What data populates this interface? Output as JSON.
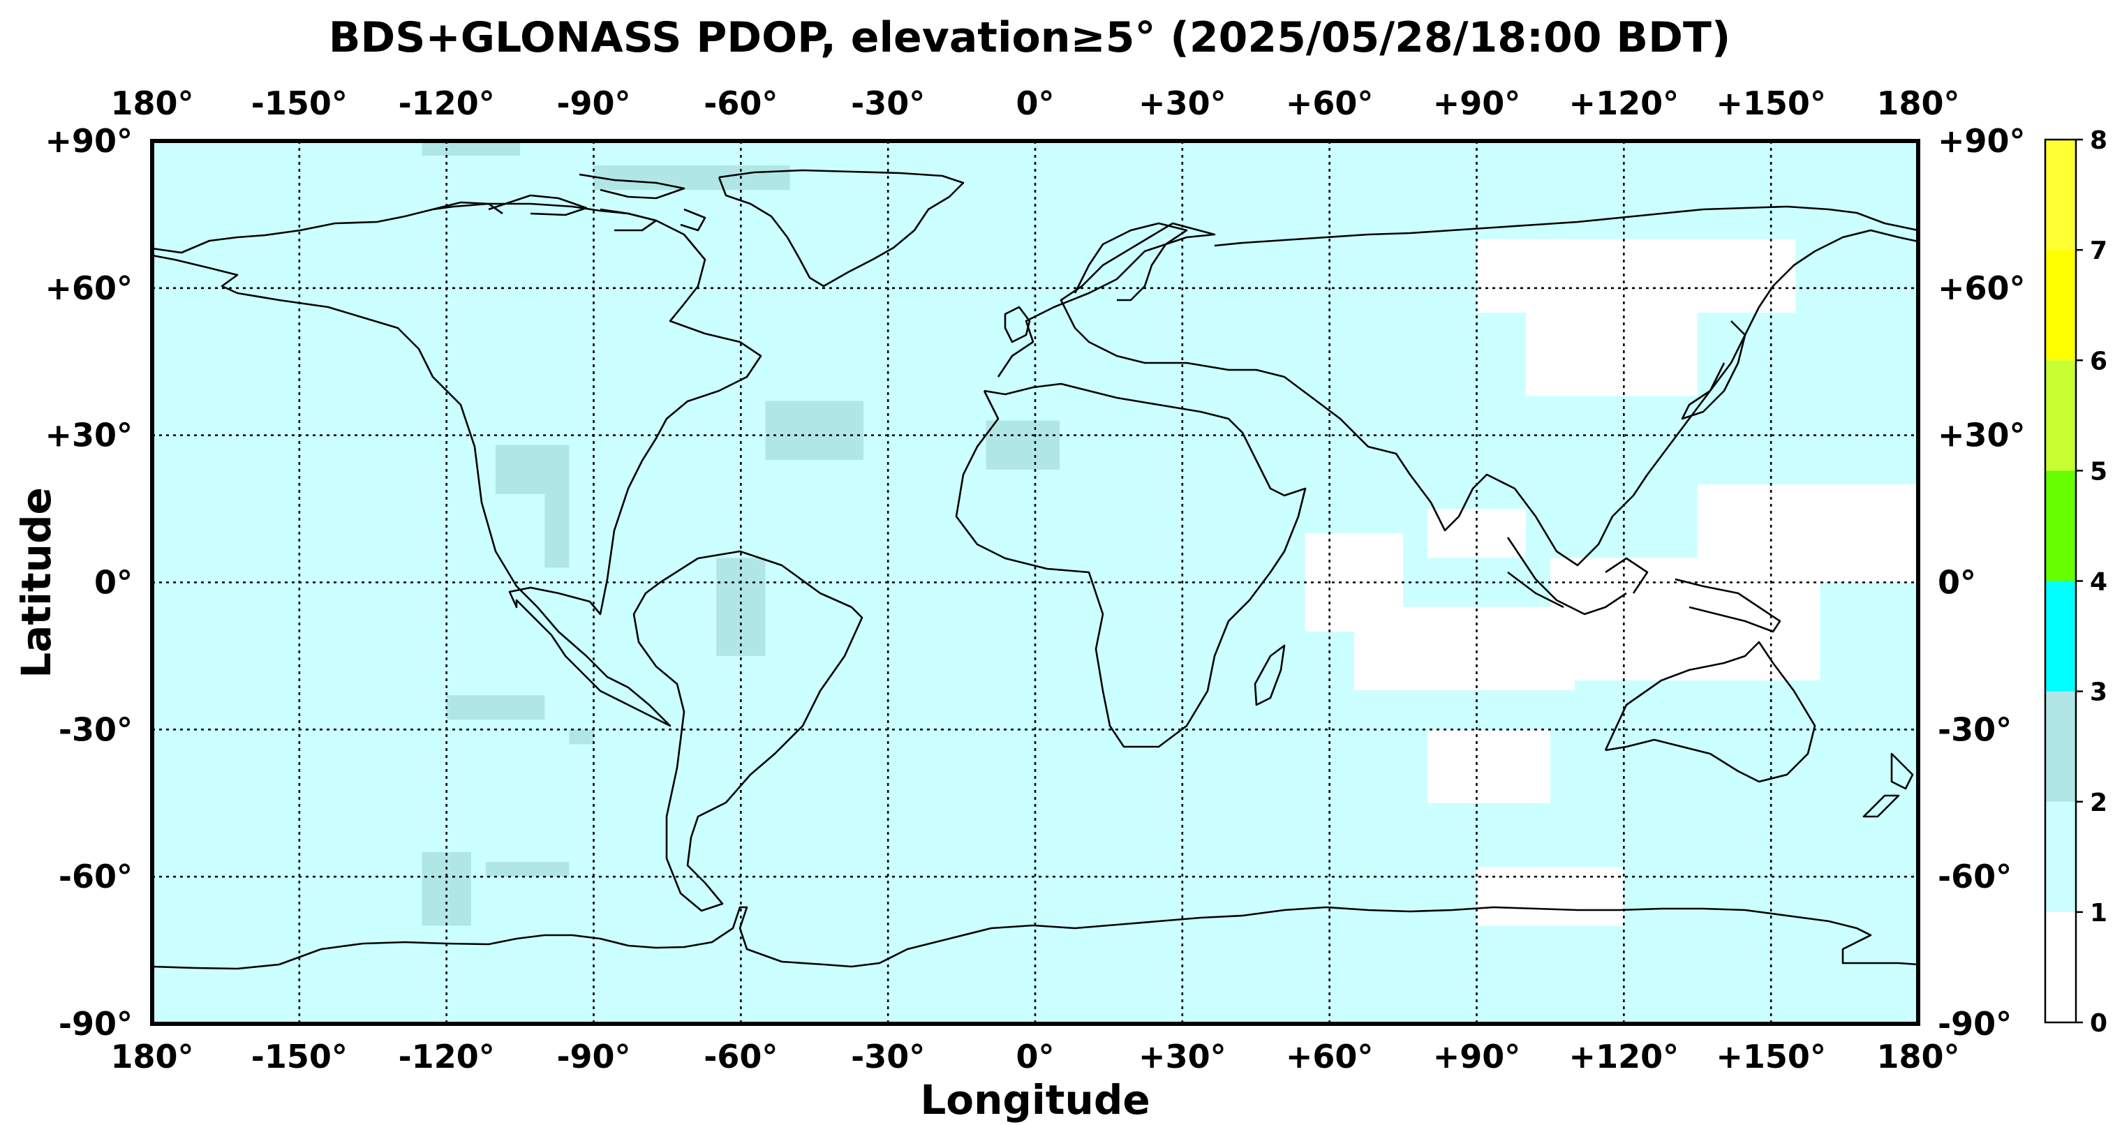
{
  "title": "BDS+GLONASS PDOP, elevation≥5° (2025/05/28/18:00 BDT)",
  "xlabel": "Longitude",
  "ylabel": "Latitude",
  "lon_ticks": [
    {
      "value": -180,
      "label": "180°"
    },
    {
      "value": -150,
      "label": "-150°"
    },
    {
      "value": -120,
      "label": "-120°"
    },
    {
      "value": -90,
      "label": "-90°"
    },
    {
      "value": -60,
      "label": "-60°"
    },
    {
      "value": -30,
      "label": "-30°"
    },
    {
      "value": 0,
      "label": "0°"
    },
    {
      "value": 30,
      "label": "+30°"
    },
    {
      "value": 60,
      "label": "+60°"
    },
    {
      "value": 90,
      "label": "+90°"
    },
    {
      "value": 120,
      "label": "+120°"
    },
    {
      "value": 150,
      "label": "+150°"
    },
    {
      "value": 180,
      "label": "180°"
    }
  ],
  "lat_ticks": [
    {
      "value": 90,
      "label": "+90°"
    },
    {
      "value": 60,
      "label": "+60°"
    },
    {
      "value": 30,
      "label": "+30°"
    },
    {
      "value": 0,
      "label": "0°"
    },
    {
      "value": -30,
      "label": "-30°"
    },
    {
      "value": -60,
      "label": "-60°"
    },
    {
      "value": -90,
      "label": "-90°"
    }
  ],
  "colorbar": {
    "range": [
      0,
      8
    ],
    "tick_labels": [
      "0",
      "1",
      "2",
      "3",
      "4",
      "5",
      "6",
      "7",
      "8"
    ],
    "levels": [
      {
        "from": 0,
        "to": 1,
        "color": "#ffffff"
      },
      {
        "from": 1,
        "to": 2,
        "color": "#ccffff"
      },
      {
        "from": 2,
        "to": 3,
        "color": "#b0e6e6"
      },
      {
        "from": 3,
        "to": 4,
        "color": "#00ffff"
      },
      {
        "from": 4,
        "to": 5,
        "color": "#66ff00"
      },
      {
        "from": 5,
        "to": 6,
        "color": "#c8ff33"
      },
      {
        "from": 6,
        "to": 7,
        "color": "#ffff00"
      },
      {
        "from": 7,
        "to": 8,
        "color": "#ffff33"
      }
    ]
  },
  "chart_data": {
    "type": "heatmap",
    "title": "BDS+GLONASS PDOP, elevation≥5° (2025/05/28/18:00 BDT)",
    "xlabel": "Longitude",
    "ylabel": "Latitude",
    "xlim": [
      -180,
      180
    ],
    "ylim": [
      -90,
      90
    ],
    "grid": true,
    "background_level": "1-2",
    "regions": [
      {
        "level": "0-1",
        "lon": [
          90,
          155
        ],
        "lat": [
          55,
          70
        ]
      },
      {
        "level": "0-1",
        "lon": [
          100,
          135
        ],
        "lat": [
          38,
          55
        ]
      },
      {
        "level": "0-1",
        "lon": [
          55,
          75
        ],
        "lat": [
          -10,
          10
        ]
      },
      {
        "level": "0-1",
        "lon": [
          65,
          110
        ],
        "lat": [
          -22,
          -5
        ]
      },
      {
        "level": "0-1",
        "lon": [
          80,
          105
        ],
        "lat": [
          -45,
          -30
        ]
      },
      {
        "level": "0-1",
        "lon": [
          105,
          160
        ],
        "lat": [
          -20,
          5
        ]
      },
      {
        "level": "0-1",
        "lon": [
          135,
          180
        ],
        "lat": [
          0,
          20
        ]
      },
      {
        "level": "0-1",
        "lon": [
          80,
          100
        ],
        "lat": [
          5,
          15
        ]
      },
      {
        "level": "0-1",
        "lon": [
          90,
          120
        ],
        "lat": [
          -70,
          -58
        ]
      },
      {
        "level": "2-3",
        "lon": [
          -125,
          -115
        ],
        "lat": [
          -70,
          -55
        ]
      },
      {
        "level": "2-3",
        "lon": [
          -112,
          -95
        ],
        "lat": [
          -60,
          -57
        ]
      },
      {
        "level": "2-3",
        "lon": [
          -120,
          -100
        ],
        "lat": [
          -28,
          -23
        ]
      },
      {
        "level": "2-3",
        "lon": [
          -65,
          -55
        ],
        "lat": [
          -15,
          5
        ]
      },
      {
        "level": "2-3",
        "lon": [
          -55,
          -35
        ],
        "lat": [
          25,
          37
        ]
      },
      {
        "level": "2-3",
        "lon": [
          -10,
          5
        ],
        "lat": [
          23,
          33
        ]
      },
      {
        "level": "2-3",
        "lon": [
          -110,
          -95
        ],
        "lat": [
          18,
          28
        ]
      },
      {
        "level": "2-3",
        "lon": [
          -100,
          -95
        ],
        "lat": [
          3,
          18
        ]
      },
      {
        "level": "2-3",
        "lon": [
          -90,
          -50
        ],
        "lat": [
          80,
          85
        ]
      },
      {
        "level": "2-3",
        "lon": [
          -125,
          -105
        ],
        "lat": [
          87,
          90
        ]
      },
      {
        "level": "2-3",
        "lon": [
          -95,
          -90
        ],
        "lat": [
          -33,
          -30
        ]
      }
    ]
  }
}
